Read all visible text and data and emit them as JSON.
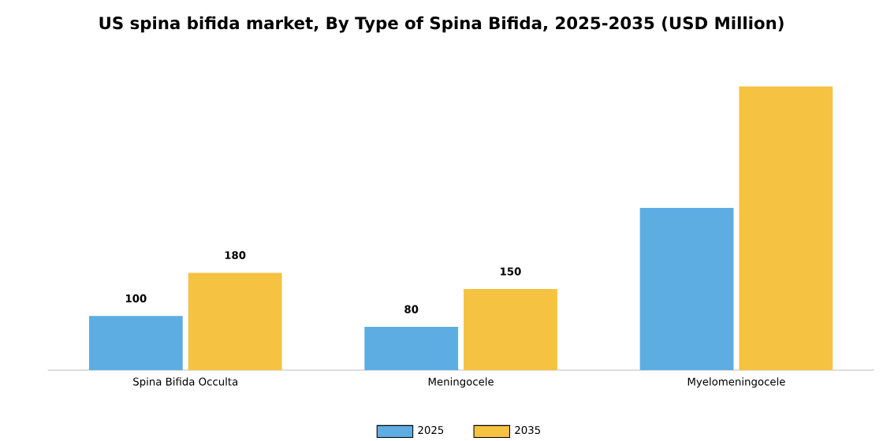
{
  "chart_data": {
    "type": "bar",
    "title": "US spina bifida market, By Type of Spina Bifida, 2025-2035 (USD Million)",
    "categories": [
      "Spina Bifida Occulta",
      "Meningocele",
      "Myelomeningocele"
    ],
    "series": [
      {
        "name": "2025",
        "color": "#5dade2",
        "values": [
          100,
          80,
          300
        ],
        "value_labels": [
          "100",
          "80",
          null
        ]
      },
      {
        "name": "2035",
        "color": "#f5c242",
        "values": [
          180,
          150,
          525
        ],
        "value_labels": [
          "180",
          "150",
          null
        ]
      }
    ],
    "legend": "bottom"
  }
}
